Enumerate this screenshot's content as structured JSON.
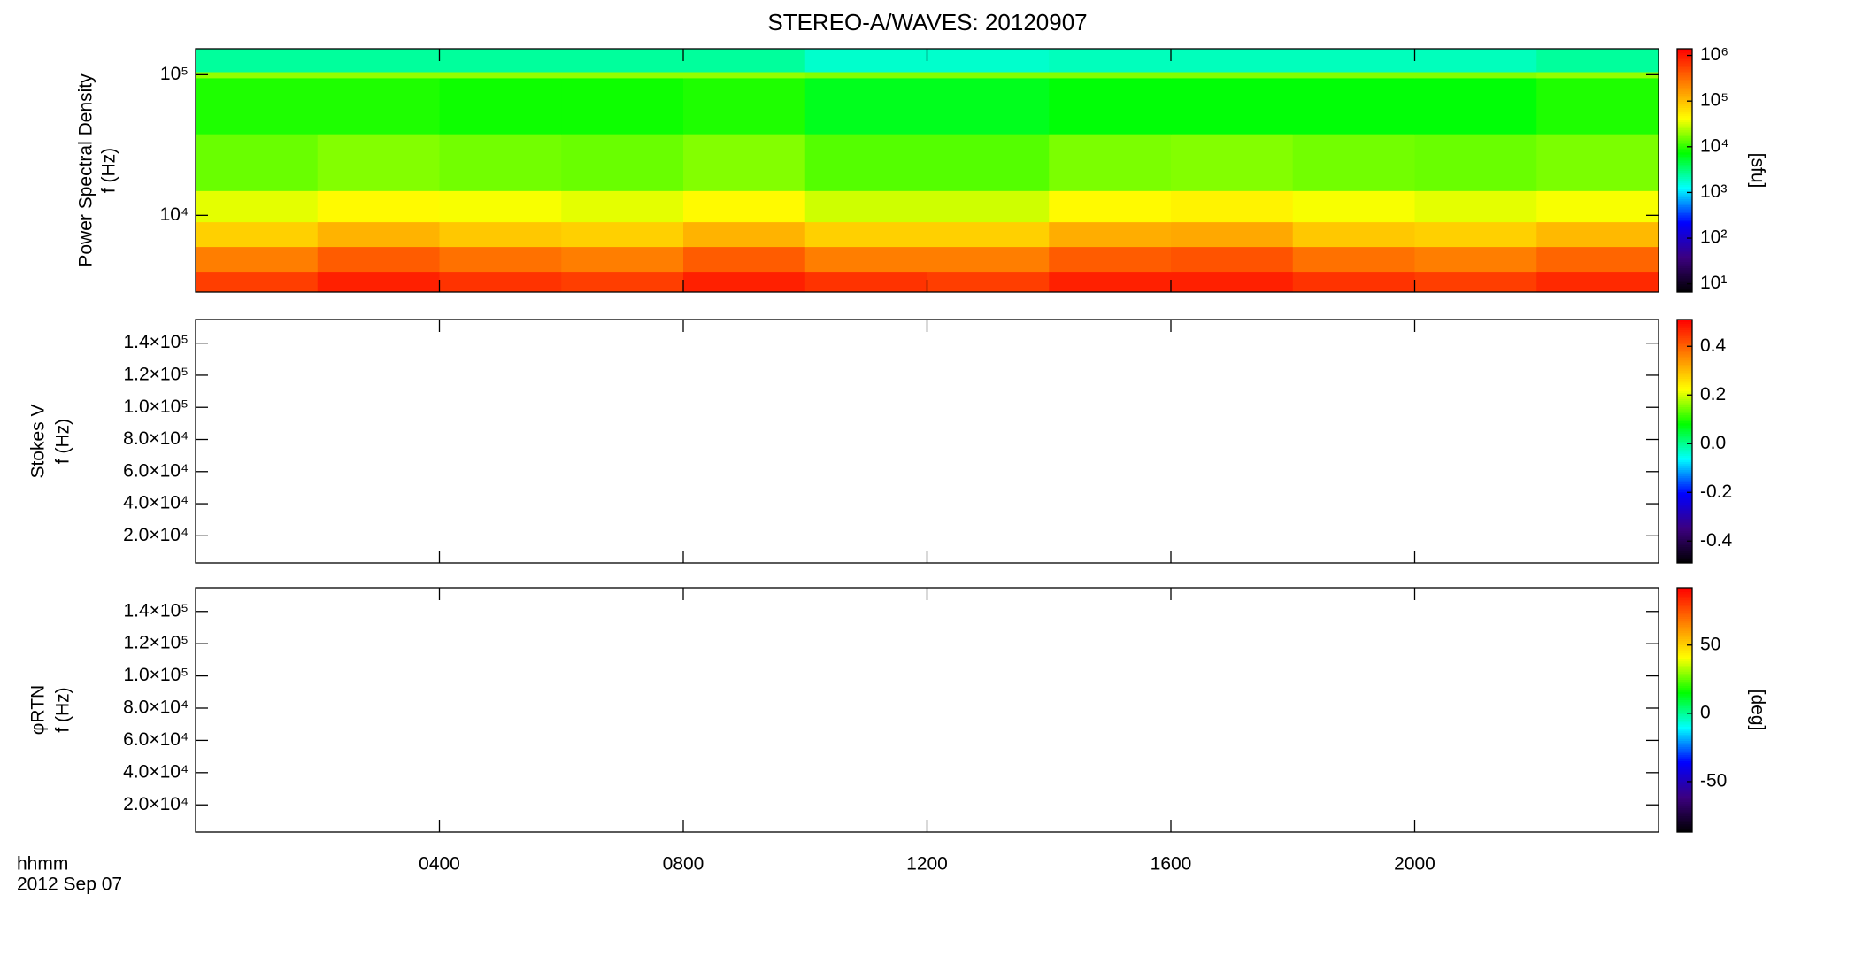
{
  "chart_data": [
    {
      "type": "heatmap",
      "title": "STEREO-A/WAVES: 20120907",
      "ylabel": [
        "Power Spectral Density",
        "f (Hz)"
      ],
      "xlim": [
        0,
        24
      ],
      "xticks": [
        4,
        8,
        12,
        16,
        20
      ],
      "yscale": "log",
      "ylim": [
        2850,
        153000
      ],
      "yticks": [
        {
          "value": 10000,
          "label": "10⁴"
        },
        {
          "value": 100000,
          "label": "10⁵"
        }
      ],
      "xbins": [
        0,
        2,
        4,
        6,
        8,
        10,
        12,
        14,
        16,
        18,
        20,
        22,
        24
      ],
      "ybins": [
        2850,
        4000,
        6000,
        9000,
        15000,
        38000,
        95000,
        105000,
        153000
      ],
      "z": [
        [
          600000,
          900000,
          700000,
          600000,
          900000,
          700000,
          600000,
          900000,
          900000,
          700000,
          600000,
          800000
        ],
        [
          250000,
          400000,
          300000,
          250000,
          400000,
          250000,
          250000,
          400000,
          450000,
          300000,
          250000,
          350000
        ],
        [
          80000,
          120000,
          90000,
          80000,
          120000,
          80000,
          80000,
          130000,
          140000,
          90000,
          80000,
          110000
        ],
        [
          35000,
          45000,
          40000,
          35000,
          45000,
          30000,
          30000,
          45000,
          50000,
          40000,
          35000,
          40000
        ],
        [
          15000,
          18000,
          16000,
          15000,
          18000,
          13000,
          13000,
          17000,
          18000,
          16000,
          15000,
          17000
        ],
        [
          9000,
          9000,
          8000,
          8000,
          9000,
          6000,
          6000,
          7000,
          7000,
          7000,
          7000,
          9000
        ],
        [
          20000,
          20000,
          20000,
          20000,
          20000,
          18000,
          18000,
          18000,
          18000,
          18000,
          18000,
          20000
        ],
        [
          2500,
          2500,
          2500,
          2500,
          2500,
          1800,
          1800,
          2000,
          2000,
          2000,
          2000,
          2500
        ]
      ],
      "zscale": "log",
      "clim": [
        6.6,
        1400000
      ],
      "cticks": [
        {
          "value": 10,
          "label": "10¹"
        },
        {
          "value": 100,
          "label": "10²"
        },
        {
          "value": 1000,
          "label": "10³"
        },
        {
          "value": 10000,
          "label": "10⁴"
        },
        {
          "value": 100000,
          "label": "10⁵"
        },
        {
          "value": 1000000,
          "label": "10⁶"
        }
      ],
      "clabel": "[sfu]",
      "colormap": [
        "#000000",
        "#3c0080",
        "#0000ff",
        "#00ffff",
        "#00ff00",
        "#ffff00",
        "#ff8000",
        "#ff0000"
      ]
    },
    {
      "type": "heatmap",
      "ylabel": [
        "Stokes V",
        "f (Hz)"
      ],
      "xlim": [
        0,
        24
      ],
      "xticks": [
        4,
        8,
        12,
        16,
        20
      ],
      "ylim": [
        3100,
        154700
      ],
      "yticks": [
        {
          "value": 20000,
          "label": "2.0×10⁴"
        },
        {
          "value": 40000,
          "label": "4.0×10⁴"
        },
        {
          "value": 60000,
          "label": "6.0×10⁴"
        },
        {
          "value": 80000,
          "label": "8.0×10⁴"
        },
        {
          "value": 100000,
          "label": "1.0×10⁵"
        },
        {
          "value": 120000,
          "label": "1.2×10⁵"
        },
        {
          "value": 140000,
          "label": "1.4×10⁵"
        }
      ],
      "clim": [
        -0.49,
        0.51
      ],
      "cticks": [
        -0.4,
        -0.2,
        {
          "value": 0,
          "label": "0.0"
        },
        0.2,
        0.4
      ],
      "colormap": [
        "#000000",
        "#3c0080",
        "#0000ff",
        "#00ffff",
        "#00ff00",
        "#ffff00",
        "#ff8000",
        "#ff0000"
      ]
    },
    {
      "type": "heatmap",
      "ylabel": [
        "φRTN",
        "f (Hz)"
      ],
      "xlim": [
        0,
        24
      ],
      "xticks": [
        {
          "value": 4,
          "label": "0400"
        },
        {
          "value": 8,
          "label": "0800"
        },
        {
          "value": 12,
          "label": "1200"
        },
        {
          "value": 16,
          "label": "1600"
        },
        {
          "value": 20,
          "label": "2000"
        }
      ],
      "xlabel": "hhmm",
      "date": "2012 Sep 07",
      "ylim": [
        3100,
        154700
      ],
      "yticks": [
        {
          "value": 20000,
          "label": "2.0×10⁴"
        },
        {
          "value": 40000,
          "label": "4.0×10⁴"
        },
        {
          "value": 60000,
          "label": "6.0×10⁴"
        },
        {
          "value": 80000,
          "label": "8.0×10⁴"
        },
        {
          "value": 100000,
          "label": "1.0×10⁵"
        },
        {
          "value": 120000,
          "label": "1.2×10⁵"
        },
        {
          "value": 140000,
          "label": "1.4×10⁵"
        }
      ],
      "clim": [
        -87,
        92
      ],
      "cticks": [
        -50,
        0,
        50
      ],
      "clabel": "[deg]",
      "colormap": [
        "#000000",
        "#3c0080",
        "#0000ff",
        "#00ffff",
        "#00ff00",
        "#ffff00",
        "#ff8000",
        "#ff0000"
      ]
    }
  ]
}
